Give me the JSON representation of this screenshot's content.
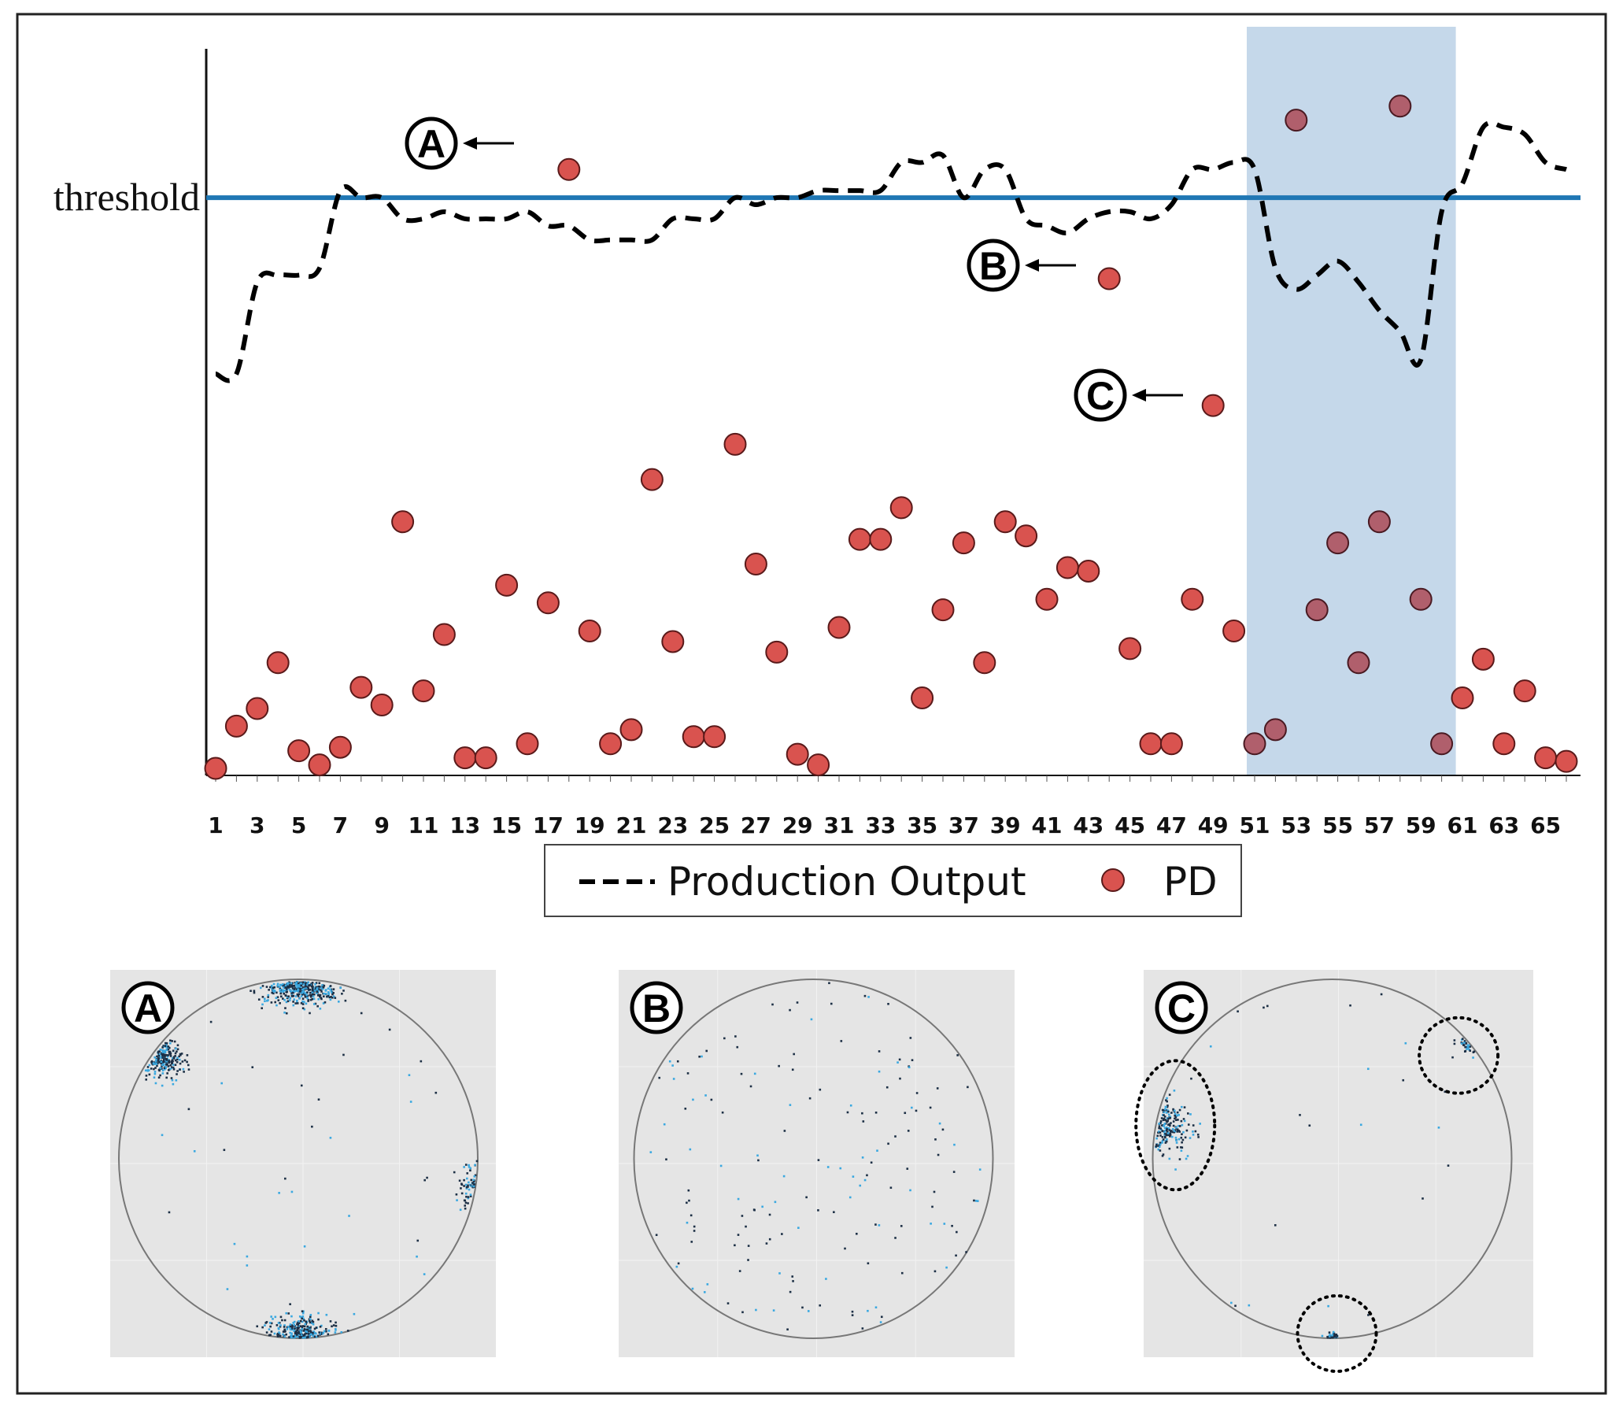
{
  "chart_data": [
    {
      "type": "line+scatter",
      "x": [
        1,
        2,
        3,
        4,
        5,
        6,
        7,
        8,
        9,
        10,
        11,
        12,
        13,
        14,
        15,
        16,
        17,
        18,
        19,
        20,
        21,
        22,
        23,
        24,
        25,
        26,
        27,
        28,
        29,
        30,
        31,
        32,
        33,
        34,
        35,
        36,
        37,
        38,
        39,
        40,
        41,
        42,
        43,
        44,
        45,
        46,
        47,
        48,
        49,
        50,
        51,
        52,
        53,
        54,
        55,
        56,
        57,
        58,
        59,
        60,
        61,
        62,
        63,
        64,
        65,
        66
      ],
      "x_tick_labels": [
        "1",
        "3",
        "5",
        "7",
        "9",
        "11",
        "13",
        "15",
        "17",
        "19",
        "21",
        "23",
        "25",
        "27",
        "29",
        "31",
        "33",
        "35",
        "37",
        "39",
        "41",
        "43",
        "45",
        "47",
        "49",
        "51",
        "53",
        "55",
        "57",
        "59",
        "61",
        "63",
        "65"
      ],
      "threshold": {
        "label": "threshold",
        "value": 82,
        "color": "#1f77b4"
      },
      "series": [
        {
          "name": "Production Output",
          "style": "dashed-line",
          "color": "#000000",
          "values": [
            57,
            57,
            70,
            71,
            71,
            72,
            83,
            82,
            82,
            79,
            79,
            80,
            79,
            79,
            79,
            80,
            78,
            78,
            76,
            76,
            76,
            76,
            79,
            79,
            79,
            82,
            81,
            82,
            82,
            83,
            83,
            83,
            83,
            87,
            87,
            88,
            82,
            86,
            86,
            79,
            78,
            77,
            79,
            80,
            80,
            79,
            81,
            86,
            86,
            87,
            86,
            72,
            69,
            71,
            73,
            70,
            66,
            63,
            59,
            80,
            84,
            92,
            92,
            91,
            87,
            86
          ]
        },
        {
          "name": "PD",
          "style": "markers",
          "color": "#d9534f",
          "values": [
            1,
            7,
            9.5,
            16,
            3.5,
            1.5,
            4,
            12.5,
            10,
            36,
            12,
            20,
            2.5,
            2.5,
            27,
            4.5,
            24.5,
            86,
            20.5,
            4.5,
            6.5,
            42,
            19,
            5.5,
            5.5,
            47,
            30,
            17.5,
            3,
            1.5,
            21,
            33.5,
            33.5,
            38,
            11,
            23.5,
            33,
            16,
            36,
            34,
            25,
            29.5,
            29,
            70.5,
            18,
            4.5,
            4.5,
            25,
            52.5,
            20.5,
            4.5,
            6.5,
            93,
            23.5,
            33,
            16,
            36,
            95,
            25,
            4.5,
            11,
            16.5,
            4.5,
            12,
            2.5,
            2
          ]
        }
      ],
      "annotations": [
        {
          "label": "A",
          "x": 18
        },
        {
          "label": "B",
          "x": 44
        },
        {
          "label": "C",
          "x": 49
        }
      ],
      "shaded_region": {
        "x_from": 51,
        "x_to": 60,
        "color": "#c5d8ea"
      },
      "ylim": [
        0,
        100
      ],
      "legend": {
        "placement": "bottom-center"
      }
    },
    {
      "type": "scatter",
      "panel_label": "A",
      "description_pattern": "edge clusters"
    },
    {
      "type": "scatter",
      "panel_label": "B",
      "description_pattern": "random"
    },
    {
      "type": "scatter",
      "panel_label": "C",
      "description_pattern": "circled clusters"
    }
  ],
  "colors": {
    "threshold_line": "#1f77b4",
    "pd_marker": "#d9534f",
    "shade": "#c5d8ea",
    "wafer_bg": "#e5e5e5",
    "dot_dark": "#1c2f45",
    "dot_light": "#3aa8e0"
  },
  "icons": [
    "left-arrow-icon",
    "circled-letter-icon"
  ]
}
